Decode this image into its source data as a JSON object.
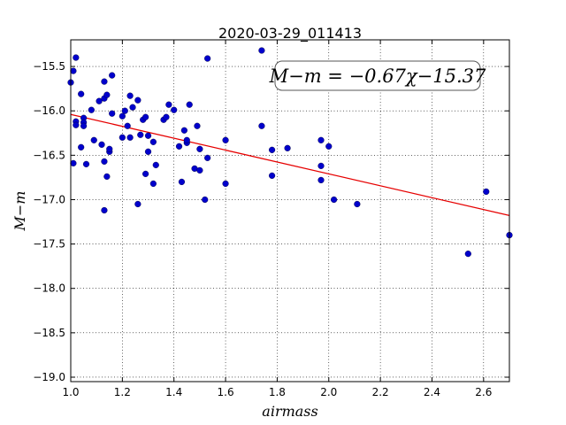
{
  "chart_data": {
    "type": "scatter",
    "title": "2020-03-29_011413",
    "xlabel": "airmass",
    "ylabel": "M−m",
    "xlim": [
      1.0,
      2.7
    ],
    "ylim": [
      -19.05,
      -15.2
    ],
    "y_inverted": true,
    "grid": true,
    "x_ticks": [
      1.0,
      1.2,
      1.4,
      1.6,
      1.8,
      2.0,
      2.2,
      2.4,
      2.6
    ],
    "x_tick_labels": [
      "1.0",
      "1.2",
      "1.4",
      "1.6",
      "1.8",
      "2.0",
      "2.2",
      "2.4",
      "2.6"
    ],
    "y_ticks": [
      -15.5,
      -16.0,
      -16.5,
      -17.0,
      -17.5,
      -18.0,
      -18.5,
      -19.0
    ],
    "y_tick_labels": [
      "−15.5",
      "−16.0",
      "−16.5",
      "−17.0",
      "−17.5",
      "−18.0",
      "−18.5",
      "−19.0"
    ],
    "annotation": "M−m = −0.67χ−15.37",
    "fit": {
      "slope": -0.67,
      "intercept": -15.37,
      "color": "#e60000"
    },
    "point_color": "#0000cc",
    "points": [
      [
        1.0,
        -15.68
      ],
      [
        1.01,
        -15.55
      ],
      [
        1.02,
        -15.4
      ],
      [
        1.01,
        -16.59
      ],
      [
        1.02,
        -16.12
      ],
      [
        1.02,
        -16.16
      ],
      [
        1.04,
        -15.81
      ],
      [
        1.04,
        -16.41
      ],
      [
        1.05,
        -16.08
      ],
      [
        1.05,
        -16.13
      ],
      [
        1.05,
        -16.17
      ],
      [
        1.06,
        -16.6
      ],
      [
        1.08,
        -15.99
      ],
      [
        1.09,
        -16.33
      ],
      [
        1.11,
        -15.89
      ],
      [
        1.12,
        -16.38
      ],
      [
        1.13,
        -15.86
      ],
      [
        1.13,
        -15.67
      ],
      [
        1.14,
        -15.82
      ],
      [
        1.13,
        -16.57
      ],
      [
        1.14,
        -16.74
      ],
      [
        1.15,
        -16.46
      ],
      [
        1.15,
        -16.43
      ],
      [
        1.16,
        -15.6
      ],
      [
        1.16,
        -16.03
      ],
      [
        1.13,
        -17.12
      ],
      [
        1.2,
        -16.3
      ],
      [
        1.2,
        -16.06
      ],
      [
        1.21,
        -16.0
      ],
      [
        1.22,
        -16.17
      ],
      [
        1.23,
        -15.83
      ],
      [
        1.24,
        -15.96
      ],
      [
        1.23,
        -16.3
      ],
      [
        1.26,
        -15.88
      ],
      [
        1.27,
        -16.27
      ],
      [
        1.26,
        -17.05
      ],
      [
        1.28,
        -16.1
      ],
      [
        1.29,
        -16.07
      ],
      [
        1.3,
        -16.46
      ],
      [
        1.29,
        -16.71
      ],
      [
        1.3,
        -16.28
      ],
      [
        1.32,
        -16.35
      ],
      [
        1.32,
        -16.82
      ],
      [
        1.33,
        -16.61
      ],
      [
        1.36,
        -16.1
      ],
      [
        1.37,
        -16.07
      ],
      [
        1.38,
        -15.93
      ],
      [
        1.4,
        -15.99
      ],
      [
        1.42,
        -16.4
      ],
      [
        1.43,
        -16.8
      ],
      [
        1.44,
        -16.22
      ],
      [
        1.45,
        -16.36
      ],
      [
        1.45,
        -16.33
      ],
      [
        1.46,
        -15.93
      ],
      [
        1.48,
        -16.65
      ],
      [
        1.49,
        -16.17
      ],
      [
        1.5,
        -16.67
      ],
      [
        1.5,
        -16.43
      ],
      [
        1.52,
        -17.0
      ],
      [
        1.53,
        -15.41
      ],
      [
        1.53,
        -16.53
      ],
      [
        1.6,
        -16.33
      ],
      [
        1.6,
        -16.82
      ],
      [
        1.74,
        -15.32
      ],
      [
        1.74,
        -16.17
      ],
      [
        1.78,
        -16.44
      ],
      [
        1.78,
        -16.73
      ],
      [
        1.84,
        -16.42
      ],
      [
        1.97,
        -16.33
      ],
      [
        1.97,
        -16.62
      ],
      [
        1.97,
        -16.78
      ],
      [
        2.0,
        -16.4
      ],
      [
        2.02,
        -17.0
      ],
      [
        2.11,
        -17.05
      ],
      [
        2.54,
        -17.61
      ],
      [
        2.61,
        -16.91
      ],
      [
        2.7,
        -17.4
      ]
    ]
  }
}
